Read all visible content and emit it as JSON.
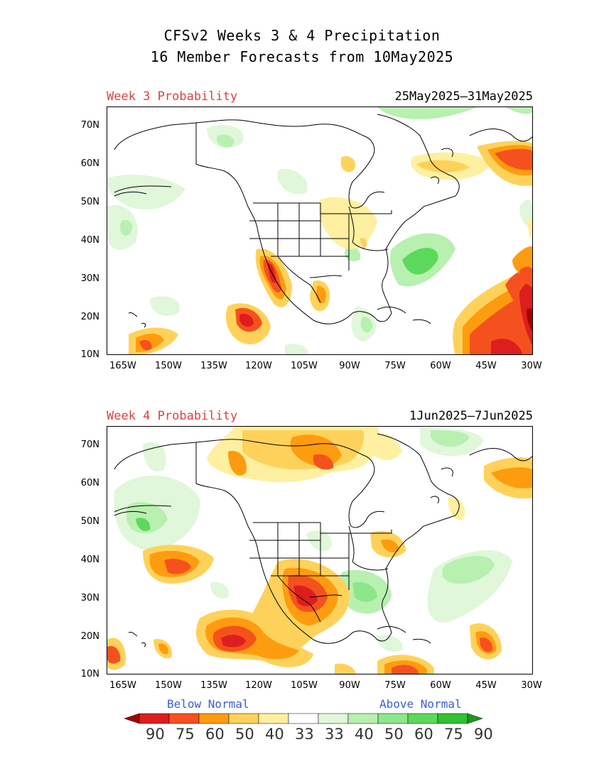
{
  "title": {
    "line1": "CFSv2 Weeks 3 & 4 Precipitation",
    "line2": "16 Member Forecasts from 10May2025"
  },
  "panels": [
    {
      "label": "Week 3 Probability",
      "dates": "25May2025—31May2025"
    },
    {
      "label": "Week 4 Probability",
      "dates": "1Jun2025—7Jun2025"
    }
  ],
  "axes": {
    "lat_ticks": [
      "70N",
      "60N",
      "50N",
      "40N",
      "30N",
      "20N",
      "10N"
    ],
    "lon_ticks": [
      "165W",
      "150W",
      "135W",
      "120W",
      "105W",
      "90W",
      "75W",
      "60W",
      "45W",
      "30W"
    ]
  },
  "legend": {
    "below_label": "Below Normal",
    "above_label": "Above Normal",
    "values": [
      "90",
      "75",
      "60",
      "50",
      "40",
      "33",
      "33",
      "40",
      "50",
      "60",
      "75",
      "90"
    ],
    "colors": [
      "#a50000",
      "#dd1e1e",
      "#f5511e",
      "#fe9c10",
      "#fed25a",
      "#fef0a0",
      "#ffffff",
      "#e0f7da",
      "#b8f0b0",
      "#8ee68a",
      "#5cd95c",
      "#33c033",
      "#1a9a1a"
    ]
  },
  "colors": {
    "below_normal": "#e04040",
    "above_normal": "#3a5fcd"
  }
}
